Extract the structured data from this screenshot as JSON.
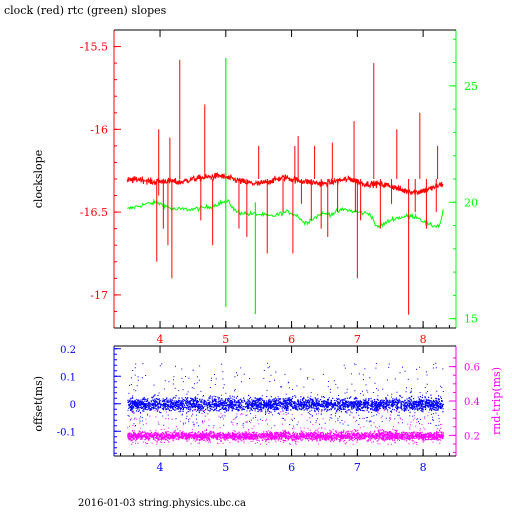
{
  "title": "clock (red) rtc (green) slopes",
  "footer": "2016-01-03 string.physics.ubc.ca",
  "chart_data": [
    {
      "type": "line",
      "title": "clock (red) rtc (green) slopes",
      "xlabel": "",
      "ylabel": "clockslope",
      "y2label": "",
      "xlim": [
        3.3,
        8.5
      ],
      "ylim": [
        -17.2,
        -15.4
      ],
      "y2lim": [
        14.6,
        27.4
      ],
      "xticks": [
        "4",
        "5",
        "6",
        "7",
        "8"
      ],
      "yticks": [
        "-15.5",
        "-16",
        "-16.5",
        "-17"
      ],
      "y2ticks": [
        "15",
        "20",
        "25"
      ],
      "colors": {
        "clock": "#ff0000",
        "rtc": "#00ff00",
        "axes": "#000000"
      },
      "series": [
        {
          "name": "clock",
          "axis": "left",
          "x": [
            3.5,
            3.7,
            3.9,
            4.1,
            4.3,
            4.5,
            4.7,
            4.9,
            5.1,
            5.3,
            5.5,
            5.7,
            5.9,
            6.1,
            6.3,
            6.5,
            6.7,
            6.9,
            7.1,
            7.3,
            7.5,
            7.7,
            7.9,
            8.1,
            8.3
          ],
          "values": [
            -16.31,
            -16.3,
            -16.32,
            -16.31,
            -16.32,
            -16.3,
            -16.29,
            -16.28,
            -16.3,
            -16.32,
            -16.33,
            -16.31,
            -16.29,
            -16.31,
            -16.32,
            -16.33,
            -16.31,
            -16.3,
            -16.33,
            -16.33,
            -16.34,
            -16.37,
            -16.38,
            -16.36,
            -16.33
          ],
          "spikes": [
            {
              "x": 3.95,
              "low": -16.8,
              "high": -16.3
            },
            {
              "x": 3.98,
              "low": -16.4,
              "high": -16.0
            },
            {
              "x": 4.05,
              "low": -16.6,
              "high": -16.3
            },
            {
              "x": 4.12,
              "low": -16.7,
              "high": -16.3
            },
            {
              "x": 4.15,
              "low": -16.3,
              "high": -16.05
            },
            {
              "x": 4.18,
              "low": -16.9,
              "high": -16.3
            },
            {
              "x": 4.3,
              "low": -16.3,
              "high": -15.58
            },
            {
              "x": 4.62,
              "low": -16.55,
              "high": -16.3
            },
            {
              "x": 4.68,
              "low": -16.3,
              "high": -15.85
            },
            {
              "x": 4.8,
              "low": -16.7,
              "high": -16.3
            },
            {
              "x": 5.2,
              "low": -16.6,
              "high": -16.3
            },
            {
              "x": 5.32,
              "low": -16.65,
              "high": -16.3
            },
            {
              "x": 5.5,
              "low": -16.3,
              "high": -16.1
            },
            {
              "x": 5.63,
              "low": -16.75,
              "high": -16.3
            },
            {
              "x": 5.87,
              "low": -16.5,
              "high": -16.3
            },
            {
              "x": 6.02,
              "low": -16.75,
              "high": -16.3
            },
            {
              "x": 6.05,
              "low": -16.3,
              "high": -16.1
            },
            {
              "x": 6.1,
              "low": -16.3,
              "high": -16.04
            },
            {
              "x": 6.15,
              "low": -16.45,
              "high": -16.3
            },
            {
              "x": 6.3,
              "low": -16.55,
              "high": -16.3
            },
            {
              "x": 6.35,
              "low": -16.3,
              "high": -16.1
            },
            {
              "x": 6.45,
              "low": -16.6,
              "high": -16.3
            },
            {
              "x": 6.55,
              "low": -16.65,
              "high": -16.3
            },
            {
              "x": 6.62,
              "low": -16.3,
              "high": -16.08
            },
            {
              "x": 6.7,
              "low": -16.5,
              "high": -16.3
            },
            {
              "x": 6.95,
              "low": -16.3,
              "high": -15.95
            },
            {
              "x": 6.97,
              "low": -16.5,
              "high": -16.3
            },
            {
              "x": 7.0,
              "low": -16.9,
              "high": -16.3
            },
            {
              "x": 7.05,
              "low": -16.55,
              "high": -16.3
            },
            {
              "x": 7.25,
              "low": -16.3,
              "high": -15.6
            },
            {
              "x": 7.35,
              "low": -16.6,
              "high": -16.3
            },
            {
              "x": 7.52,
              "low": -16.45,
              "high": -16.3
            },
            {
              "x": 7.6,
              "low": -16.3,
              "high": -16.0
            },
            {
              "x": 7.78,
              "low": -17.12,
              "high": -16.3
            },
            {
              "x": 7.88,
              "low": -16.5,
              "high": -16.3
            },
            {
              "x": 7.95,
              "low": -16.3,
              "high": -15.9
            },
            {
              "x": 8.05,
              "low": -16.6,
              "high": -16.3
            },
            {
              "x": 8.2,
              "low": -16.5,
              "high": -16.3
            },
            {
              "x": 8.22,
              "low": -16.3,
              "high": -16.1
            }
          ]
        },
        {
          "name": "rtc",
          "axis": "right",
          "x": [
            3.5,
            3.75,
            3.95,
            4.2,
            4.5,
            4.75,
            4.95,
            5.05,
            5.15,
            5.35,
            5.45,
            5.7,
            5.95,
            6.1,
            6.2,
            6.45,
            6.6,
            6.8,
            6.95,
            7.2,
            7.3,
            7.55,
            7.75,
            7.9,
            8.1,
            8.25,
            8.32
          ],
          "values": [
            19.7,
            19.9,
            20.0,
            19.7,
            19.7,
            19.8,
            20.0,
            20.0,
            19.6,
            19.5,
            19.5,
            19.4,
            19.6,
            19.4,
            19.1,
            19.5,
            19.5,
            19.7,
            19.6,
            19.5,
            18.9,
            19.3,
            19.4,
            19.4,
            19.0,
            19.0,
            19.8
          ],
          "spikes": [
            {
              "x": 5.0,
              "low": 15.5,
              "high": 26.2
            },
            {
              "x": 5.45,
              "low": 15.2,
              "high": 20.0
            }
          ]
        }
      ]
    },
    {
      "type": "scatter",
      "title": "",
      "xlabel": "",
      "ylabel": "offset(ms)",
      "y2label": "rnd-trip(ms)",
      "xlim": [
        3.3,
        8.5
      ],
      "ylim": [
        -0.19,
        0.21
      ],
      "y2lim": [
        0.08,
        0.72
      ],
      "xticks": [
        "4",
        "5",
        "6",
        "7",
        "8"
      ],
      "yticks": [
        "0.2",
        "0.1",
        "0",
        "-0.1"
      ],
      "y2ticks": [
        "0.6",
        "0.4",
        "0.2"
      ],
      "colors": {
        "offset": "#0000ff",
        "rnd-trip": "#ff00ff",
        "axes": "#000000"
      },
      "series": [
        {
          "name": "offset(ms)",
          "axis": "left",
          "x_range": [
            3.5,
            8.3
          ],
          "center": 0.0,
          "core_spread": 0.03,
          "outlier_range": [
            -0.08,
            0.15
          ]
        },
        {
          "name": "rnd-trip(ms)",
          "axis": "right",
          "x_range": [
            3.5,
            8.3
          ],
          "center": 0.2,
          "core_spread": 0.03,
          "outlier_range": [
            0.15,
            0.35
          ]
        }
      ]
    }
  ]
}
